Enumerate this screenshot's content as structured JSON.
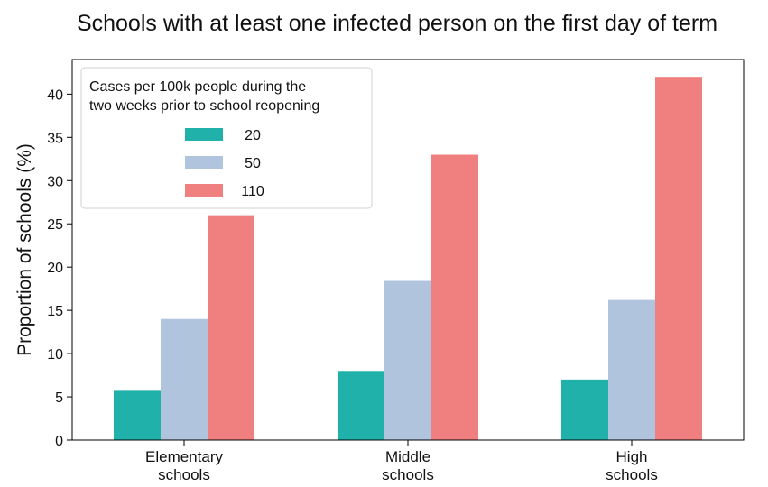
{
  "chart_data": {
    "type": "bar",
    "title": "Schools with at least one infected person on the first day of term",
    "ylabel": "Proportion of schools (%)",
    "xlabel": "",
    "ylim": [
      0,
      44
    ],
    "yticks": [
      0,
      5,
      10,
      15,
      20,
      25,
      30,
      35,
      40
    ],
    "categories": [
      [
        "Elementary",
        "schools"
      ],
      [
        "Middle",
        "schools"
      ],
      [
        "High",
        "schools"
      ]
    ],
    "legend": {
      "title": [
        "Cases per 100k people during the",
        "two weeks prior to school reopening"
      ],
      "placement": "top-left"
    },
    "series": [
      {
        "name": "20",
        "color": "#20b2aa",
        "values": [
          5.8,
          8.0,
          7.0
        ]
      },
      {
        "name": "50",
        "color": "#b0c4de",
        "values": [
          14.0,
          18.4,
          16.2
        ]
      },
      {
        "name": "110",
        "color": "#f08080",
        "values": [
          26.0,
          33.0,
          42.0
        ]
      }
    ],
    "grid": false
  }
}
